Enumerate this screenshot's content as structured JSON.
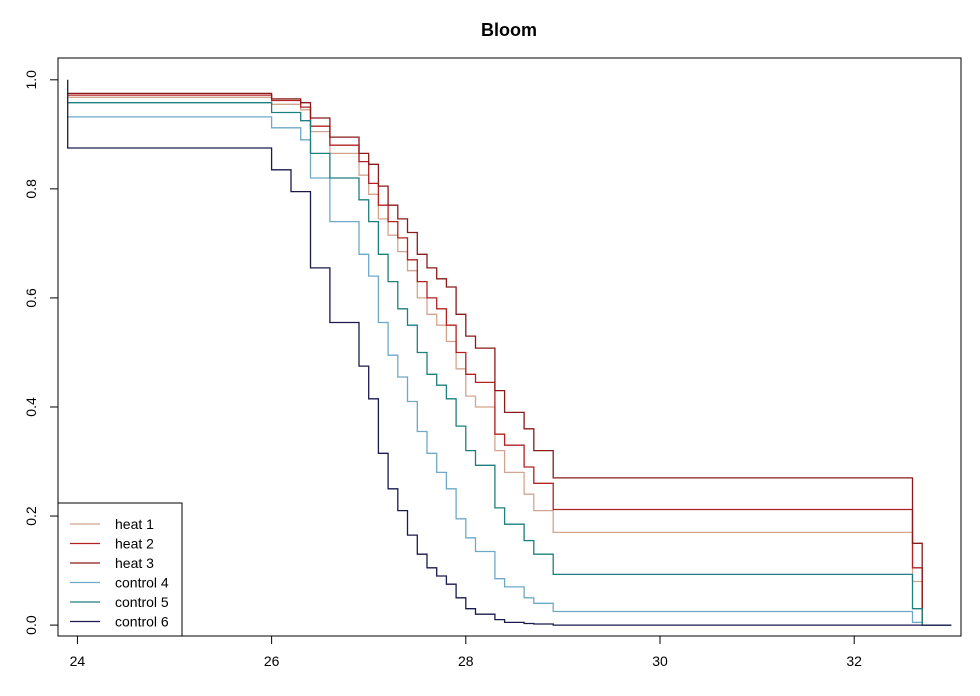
{
  "chart_data": {
    "type": "line",
    "step": true,
    "title": "Bloom",
    "xlabel": "",
    "ylabel": "",
    "xlim": [
      23.8,
      33.1
    ],
    "ylim": [
      -0.02,
      1.04
    ],
    "x_ticks": [
      24,
      26,
      28,
      30,
      32
    ],
    "y_ticks": [
      0.0,
      0.2,
      0.4,
      0.6,
      0.8,
      1.0
    ],
    "x_tick_labels": [
      "24",
      "26",
      "28",
      "30",
      "32"
    ],
    "y_tick_labels": [
      "0.0",
      "0.2",
      "0.4",
      "0.6",
      "0.8",
      "1.0"
    ],
    "grid": false,
    "legend_position": "bottom-left",
    "series": [
      {
        "name": "heat 1",
        "color": "#d4a58e",
        "x": [
          23.9,
          26.0,
          26.3,
          26.4,
          26.6,
          26.9,
          27.0,
          27.1,
          27.2,
          27.3,
          27.4,
          27.5,
          27.6,
          27.7,
          27.8,
          27.9,
          28.0,
          28.1,
          28.3,
          28.4,
          28.6,
          28.7,
          28.9,
          32.6,
          32.7
        ],
        "y": [
          0.968,
          0.955,
          0.945,
          0.905,
          0.865,
          0.825,
          0.79,
          0.745,
          0.715,
          0.685,
          0.65,
          0.6,
          0.57,
          0.55,
          0.52,
          0.47,
          0.42,
          0.4,
          0.32,
          0.28,
          0.24,
          0.21,
          0.17,
          0.08,
          0.0
        ]
      },
      {
        "name": "heat 2",
        "color": "#b22222",
        "x": [
          23.9,
          26.0,
          26.3,
          26.4,
          26.6,
          26.9,
          27.0,
          27.1,
          27.2,
          27.3,
          27.4,
          27.5,
          27.6,
          27.7,
          27.8,
          27.9,
          28.0,
          28.1,
          28.3,
          28.4,
          28.6,
          28.7,
          28.9,
          32.6,
          32.7
        ],
        "y": [
          0.972,
          0.962,
          0.95,
          0.915,
          0.88,
          0.85,
          0.81,
          0.77,
          0.74,
          0.71,
          0.67,
          0.63,
          0.6,
          0.58,
          0.55,
          0.5,
          0.46,
          0.445,
          0.35,
          0.33,
          0.29,
          0.26,
          0.212,
          0.105,
          0.0
        ]
      },
      {
        "name": "heat 3",
        "color": "#8b1a1a",
        "x": [
          23.9,
          26.0,
          26.3,
          26.4,
          26.6,
          26.9,
          27.0,
          27.1,
          27.2,
          27.3,
          27.4,
          27.5,
          27.6,
          27.7,
          27.8,
          27.9,
          28.0,
          28.1,
          28.3,
          28.4,
          28.6,
          28.7,
          28.9,
          32.6,
          32.7
        ],
        "y": [
          0.975,
          0.965,
          0.958,
          0.93,
          0.895,
          0.865,
          0.845,
          0.805,
          0.77,
          0.745,
          0.72,
          0.68,
          0.655,
          0.635,
          0.62,
          0.57,
          0.53,
          0.508,
          0.43,
          0.39,
          0.36,
          0.32,
          0.27,
          0.15,
          0.0
        ]
      },
      {
        "name": "control 4",
        "color": "#6fa8c8",
        "x": [
          23.9,
          26.0,
          26.3,
          26.4,
          26.6,
          26.9,
          27.0,
          27.1,
          27.2,
          27.3,
          27.4,
          27.5,
          27.6,
          27.7,
          27.8,
          27.9,
          28.0,
          28.1,
          28.3,
          28.4,
          28.6,
          28.7,
          28.9,
          32.6,
          32.7
        ],
        "y": [
          0.932,
          0.912,
          0.89,
          0.82,
          0.74,
          0.68,
          0.64,
          0.555,
          0.495,
          0.455,
          0.41,
          0.355,
          0.315,
          0.28,
          0.25,
          0.195,
          0.16,
          0.135,
          0.085,
          0.07,
          0.05,
          0.04,
          0.025,
          0.005,
          0.0
        ]
      },
      {
        "name": "control 5",
        "color": "#1e7f7f",
        "x": [
          23.9,
          26.0,
          26.3,
          26.4,
          26.6,
          26.9,
          27.0,
          27.1,
          27.2,
          27.3,
          27.4,
          27.5,
          27.6,
          27.7,
          27.8,
          27.9,
          28.0,
          28.1,
          28.3,
          28.4,
          28.6,
          28.7,
          28.9,
          32.6,
          32.7
        ],
        "y": [
          0.958,
          0.94,
          0.925,
          0.865,
          0.82,
          0.78,
          0.74,
          0.68,
          0.63,
          0.58,
          0.55,
          0.5,
          0.46,
          0.44,
          0.415,
          0.365,
          0.32,
          0.293,
          0.215,
          0.185,
          0.155,
          0.13,
          0.093,
          0.03,
          0.0
        ]
      },
      {
        "name": "control 6",
        "color": "#1a1a4e",
        "x": [
          23.9,
          23.9,
          26.0,
          26.2,
          26.4,
          26.6,
          26.9,
          27.0,
          27.1,
          27.2,
          27.3,
          27.4,
          27.5,
          27.6,
          27.7,
          27.8,
          27.9,
          28.0,
          28.1,
          28.3,
          28.4,
          28.6,
          28.7,
          28.9,
          32.6,
          32.7
        ],
        "y": [
          1.0,
          0.875,
          0.835,
          0.795,
          0.655,
          0.555,
          0.475,
          0.415,
          0.315,
          0.25,
          0.21,
          0.165,
          0.13,
          0.105,
          0.09,
          0.075,
          0.05,
          0.03,
          0.02,
          0.01,
          0.005,
          0.003,
          0.002,
          0.0,
          0.0,
          0.0
        ]
      }
    ]
  }
}
